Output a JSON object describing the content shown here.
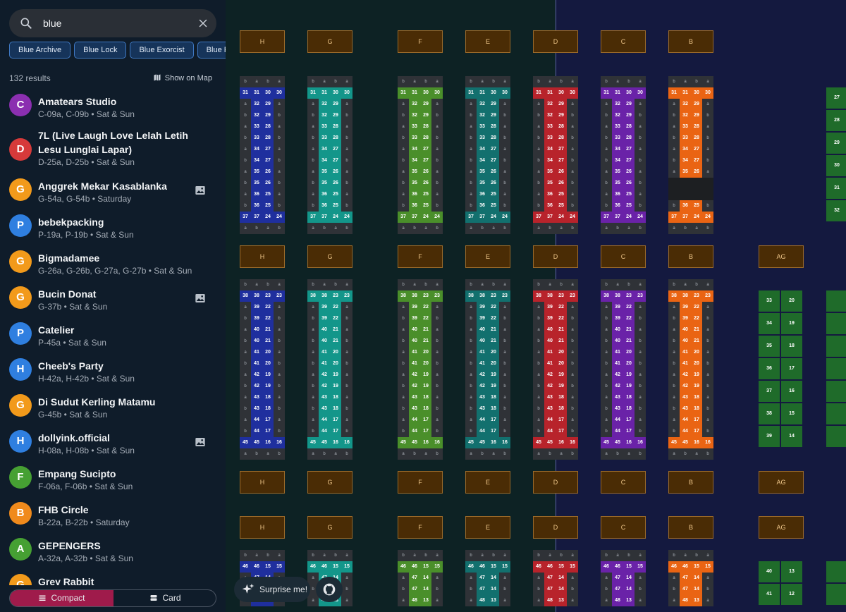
{
  "search": {
    "value": "blue",
    "placeholder": ""
  },
  "chips": [
    "Blue Archive",
    "Blue Lock",
    "Blue Exorcist",
    "Blue Period"
  ],
  "results_count": "132 results",
  "show_on_map": "Show on Map",
  "results": [
    {
      "initial": "C",
      "color": "#8b2fb0",
      "name": "Amatears Studio",
      "sub": "C-09a, C-09b • Sat & Sun",
      "image": false
    },
    {
      "initial": "D",
      "color": "#d63a3a",
      "name": "7L (Live Laugh Love Lelah Letih Lesu Lunglai Lapar)",
      "sub": "D-25a, D-25b • Sat & Sun",
      "image": false
    },
    {
      "initial": "G",
      "color": "#f29a1b",
      "name": "Anggrek Mekar Kasablanka",
      "sub": "G-54a, G-54b • Saturday",
      "image": true
    },
    {
      "initial": "P",
      "color": "#2f7fe0",
      "name": "bebekpacking",
      "sub": "P-19a, P-19b • Sat & Sun",
      "image": false
    },
    {
      "initial": "G",
      "color": "#f29a1b",
      "name": "Bigmadamee",
      "sub": "G-26a, G-26b, G-27a, G-27b • Sat & Sun",
      "image": false
    },
    {
      "initial": "G",
      "color": "#f29a1b",
      "name": "Bucin Donat",
      "sub": "G-37b • Sat & Sun",
      "image": true
    },
    {
      "initial": "P",
      "color": "#2f7fe0",
      "name": "Catelier",
      "sub": "P-45a • Sat & Sun",
      "image": false
    },
    {
      "initial": "H",
      "color": "#2f7fe0",
      "name": "Cheeb's Party",
      "sub": "H-42a, H-42b • Sat & Sun",
      "image": false
    },
    {
      "initial": "G",
      "color": "#f29a1b",
      "name": "Di Sudut Kerling Matamu",
      "sub": "G-45b • Sat & Sun",
      "image": false
    },
    {
      "initial": "H",
      "color": "#2f7fe0",
      "name": "dollyink.official",
      "sub": "H-08a, H-08b • Sat & Sun",
      "image": true
    },
    {
      "initial": "F",
      "color": "#46a033",
      "name": "Empang Sucipto",
      "sub": "F-06a, F-06b • Sat & Sun",
      "image": false
    },
    {
      "initial": "B",
      "color": "#f08a1c",
      "name": "FHB Circle",
      "sub": "B-22a, B-22b • Saturday",
      "image": false
    },
    {
      "initial": "A",
      "color": "#46a033",
      "name": "GEPENGERS",
      "sub": "A-32a, A-32b • Sat & Sun",
      "image": false
    },
    {
      "initial": "G",
      "color": "#f29a1b",
      "name": "Grey Rabbit",
      "sub": "",
      "image": false
    }
  ],
  "view_tabs": {
    "compact": "Compact",
    "card": "Card"
  },
  "surprise": "Surprise me!",
  "map": {
    "columns": [
      {
        "label": "H",
        "color": "#1f2f9e"
      },
      {
        "label": "G",
        "color": "#13968a"
      },
      {
        "label": "F",
        "color": "#4a8f2a"
      },
      {
        "label": "E",
        "color": "#12706e"
      },
      {
        "label": "D",
        "color": "#b8232b"
      },
      {
        "label": "C",
        "color": "#6a22a8"
      },
      {
        "label": "B",
        "color": "#ea6413"
      }
    ],
    "side_label": "AG",
    "side_color": "#1f6b2a",
    "top_side_numbers": [
      "27",
      "28",
      "29",
      "30",
      "31",
      "32"
    ],
    "block1": {
      "top": [
        "31",
        "31",
        "30",
        "30"
      ],
      "rows": [
        [
          "32",
          "29"
        ],
        [
          "32",
          "29"
        ],
        [
          "33",
          "28"
        ],
        [
          "33",
          "28"
        ],
        [
          "34",
          "27"
        ],
        [
          "34",
          "27"
        ],
        [
          "35",
          "26"
        ],
        [
          "35",
          "26"
        ],
        [
          "36",
          "25"
        ],
        [
          "36",
          "25"
        ]
      ],
      "bottom": [
        "37",
        "37",
        "24",
        "24"
      ]
    },
    "block2": {
      "top": [
        "38",
        "38",
        "23",
        "23"
      ],
      "rows": [
        [
          "39",
          "22"
        ],
        [
          "39",
          "22"
        ],
        [
          "40",
          "21"
        ],
        [
          "40",
          "21"
        ],
        [
          "41",
          "20"
        ],
        [
          "41",
          "20"
        ],
        [
          "42",
          "19"
        ],
        [
          "42",
          "19"
        ],
        [
          "43",
          "18"
        ],
        [
          "43",
          "18"
        ],
        [
          "44",
          "17"
        ],
        [
          "44",
          "17"
        ]
      ],
      "bottom": [
        "45",
        "45",
        "16",
        "16"
      ]
    },
    "block3": {
      "top": [
        "46",
        "46",
        "15",
        "15"
      ],
      "rows": [
        [
          "47",
          "14"
        ],
        [
          "47",
          "14"
        ],
        [
          "48",
          "13"
        ]
      ]
    },
    "side_pairs_2": [
      [
        "33",
        "20"
      ],
      [
        "34",
        "19"
      ],
      [
        "35",
        "18"
      ],
      [
        "36",
        "17"
      ],
      [
        "37",
        "16"
      ],
      [
        "38",
        "15"
      ],
      [
        "39",
        "14"
      ]
    ],
    "side_pairs_3": [
      [
        "40",
        "13"
      ],
      [
        "41",
        "12"
      ]
    ],
    "right_col_2": [
      "",
      "",
      "",
      "",
      "",
      "",
      ""
    ],
    "seat_a": "a",
    "seat_b": "b"
  }
}
